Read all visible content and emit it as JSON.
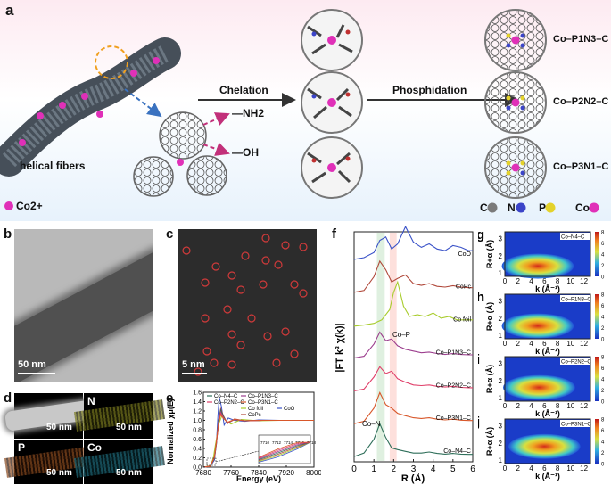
{
  "panels": {
    "a": "a",
    "b": "b",
    "c": "c",
    "d": "d",
    "e": "e",
    "f": "f",
    "g": "g",
    "h": "h",
    "i": "i",
    "j": "j"
  },
  "schematic": {
    "fiber_label": "helical fibers",
    "co_ion_label": "Co2+",
    "group_nh2": "—NH2",
    "group_oh": "—OH",
    "step1": "Chelation",
    "step2": "Phosphidation",
    "products": [
      "Co–P1N3–C",
      "Co–P2N2–C",
      "Co–P3N1–C"
    ],
    "legend": [
      {
        "label": "C",
        "color": "#7a7a7a"
      },
      {
        "label": "N",
        "color": "#3b44c8"
      },
      {
        "label": "P",
        "color": "#e4d22a"
      },
      {
        "label": "Co",
        "color": "#e030b8"
      }
    ],
    "colors": {
      "co": "#e030b8",
      "n": "#3b44c8",
      "p": "#e4d22a",
      "c": "#7a7a7a",
      "arrow_pink": "#c2307a",
      "arrow_blue": "#3a72c0"
    }
  },
  "tem": {
    "scale": "50 nm"
  },
  "haadf": {
    "scale": "5 nm"
  },
  "mapping": {
    "channels": [
      "",
      "N",
      "P",
      "Co"
    ],
    "scales": [
      "50 nm",
      "50 nm",
      "50 nm",
      "50 nm"
    ]
  },
  "chart_data": [
    {
      "panel": "e",
      "type": "line",
      "xlabel": "Energy (eV)",
      "ylabel": "Normalized χμ(E)",
      "xlim": [
        7680,
        8000
      ],
      "ylim": [
        0.0,
        1.6
      ],
      "xticks": [
        "7680",
        "7760",
        "7840",
        "7920",
        "8000"
      ],
      "yticks": [
        "0.0",
        "0.2",
        "0.4",
        "0.6",
        "0.8",
        "1.0",
        "1.2",
        "1.4",
        "1.6"
      ],
      "inset_xticks": [
        "7710",
        "7712",
        "7714",
        "7716",
        "7718"
      ],
      "legend": [
        {
          "name": "Co–N4–C",
          "color": "#2f6f5a"
        },
        {
          "name": "Co–P1N3–C",
          "color": "#9c3e8e"
        },
        {
          "name": "Co–P2N2–C",
          "color": "#e0406a"
        },
        {
          "name": "Co–P3N1–C",
          "color": "#d8572a"
        },
        {
          "name": "Co foil",
          "color": "#a8cc2c"
        },
        {
          "name": "CoO",
          "color": "#3a52c8"
        },
        {
          "name": "CoPc",
          "color": "#b0483a"
        }
      ],
      "series": [
        {
          "name": "CoO",
          "x": [
            7680,
            7700,
            7712,
            7718,
            7722,
            7726,
            7732,
            7740,
            7752,
            7770,
            7800,
            7840,
            7900,
            8000
          ],
          "y": [
            0.0,
            0.02,
            0.15,
            0.55,
            1.1,
            1.5,
            1.3,
            0.9,
            1.05,
            1.0,
            0.98,
            1.01,
            1.0,
            1.0
          ]
        },
        {
          "name": "Co foil",
          "x": [
            7680,
            7700,
            7709,
            7714,
            7720,
            7726,
            7734,
            7744,
            7760,
            7790,
            7840,
            7900,
            8000
          ],
          "y": [
            0.0,
            0.03,
            0.2,
            0.45,
            0.7,
            0.95,
            1.1,
            1.0,
            0.92,
            1.02,
            0.99,
            1.0,
            1.0
          ]
        },
        {
          "name": "CoPc",
          "x": [
            7680,
            7700,
            7712,
            7718,
            7724,
            7730,
            7738,
            7750,
            7770,
            7800,
            7850,
            7920,
            8000
          ],
          "y": [
            0.0,
            0.02,
            0.2,
            0.55,
            1.0,
            1.25,
            1.1,
            0.93,
            1.03,
            0.99,
            1.0,
            1.0,
            1.0
          ]
        },
        {
          "name": "Co–N4–C",
          "x": [
            7680,
            7700,
            7712,
            7718,
            7724,
            7730,
            7738,
            7750,
            7770,
            7800,
            7850,
            7920,
            8000
          ],
          "y": [
            0.0,
            0.02,
            0.18,
            0.5,
            0.98,
            1.22,
            1.08,
            0.94,
            1.02,
            0.99,
            1.0,
            1.0,
            1.0
          ]
        },
        {
          "name": "Co–P1N3–C",
          "x": [
            7680,
            7700,
            7712,
            7718,
            7724,
            7730,
            7738,
            7750,
            7770,
            7800,
            7850,
            7920,
            8000
          ],
          "y": [
            0.0,
            0.02,
            0.2,
            0.52,
            0.95,
            1.18,
            1.06,
            0.95,
            1.02,
            0.99,
            1.0,
            1.0,
            1.0
          ]
        },
        {
          "name": "Co–P2N2–C",
          "x": [
            7680,
            7700,
            7712,
            7718,
            7724,
            7730,
            7738,
            7750,
            7770,
            7800,
            7850,
            7920,
            8000
          ],
          "y": [
            0.0,
            0.02,
            0.21,
            0.54,
            0.93,
            1.15,
            1.05,
            0.95,
            1.02,
            0.99,
            1.0,
            1.0,
            1.0
          ]
        },
        {
          "name": "Co–P3N1–C",
          "x": [
            7680,
            7700,
            7712,
            7718,
            7724,
            7730,
            7738,
            7750,
            7770,
            7800,
            7850,
            7920,
            8000
          ],
          "y": [
            0.0,
            0.02,
            0.22,
            0.56,
            0.92,
            1.12,
            1.04,
            0.96,
            1.02,
            0.99,
            1.0,
            1.0,
            1.0
          ]
        }
      ]
    },
    {
      "panel": "f",
      "type": "line",
      "xlabel": "R (Å)",
      "ylabel": "|FT k³ χ(k)|",
      "xlim": [
        0,
        6
      ],
      "xticks": [
        "0",
        "1",
        "2",
        "3",
        "4",
        "5",
        "6"
      ],
      "annotations": [
        "Co–N",
        "Co–P"
      ],
      "series": [
        {
          "name": "CoO",
          "color": "#3a52c8",
          "x": [
            0,
            0.5,
            1.0,
            1.3,
            1.6,
            1.9,
            2.2,
            2.6,
            3.0,
            3.4,
            3.8,
            4.2,
            4.6,
            5.0,
            5.4,
            5.8,
            6.0
          ],
          "y": [
            0.05,
            0.1,
            0.25,
            0.6,
            0.7,
            0.35,
            0.5,
            1.0,
            0.55,
            0.4,
            0.5,
            0.35,
            0.3,
            0.45,
            0.4,
            0.3,
            0.3
          ]
        },
        {
          "name": "CoPc",
          "color": "#b0483a",
          "x": [
            0,
            0.5,
            1.0,
            1.3,
            1.6,
            1.9,
            2.2,
            2.6,
            3.0,
            3.4,
            3.8,
            4.2,
            4.6,
            5.0,
            5.4,
            5.8,
            6.0
          ],
          "y": [
            0.05,
            0.1,
            0.5,
            0.95,
            0.7,
            0.35,
            0.45,
            0.55,
            0.3,
            0.25,
            0.3,
            0.22,
            0.2,
            0.24,
            0.2,
            0.18,
            0.18
          ]
        },
        {
          "name": "Co foil",
          "color": "#a8cc2c",
          "x": [
            0,
            0.5,
            1.0,
            1.4,
            1.8,
            2.0,
            2.2,
            2.5,
            2.8,
            3.2,
            3.6,
            4.0,
            4.4,
            4.8,
            5.2,
            5.6,
            6.0
          ],
          "y": [
            0.02,
            0.05,
            0.1,
            0.2,
            0.5,
            1.0,
            1.3,
            0.6,
            0.3,
            0.35,
            0.3,
            0.4,
            0.25,
            0.3,
            0.2,
            0.2,
            0.2
          ]
        },
        {
          "name": "Co–P1N3–C",
          "color": "#9c3e8e",
          "x": [
            0,
            0.5,
            1.0,
            1.3,
            1.6,
            1.9,
            2.2,
            2.6,
            3.0,
            3.4,
            3.8,
            4.2,
            4.6,
            5.0,
            5.4,
            5.8,
            6.0
          ],
          "y": [
            0.05,
            0.1,
            0.45,
            0.8,
            0.55,
            0.6,
            0.4,
            0.3,
            0.25,
            0.2,
            0.22,
            0.18,
            0.15,
            0.18,
            0.15,
            0.14,
            0.14
          ]
        },
        {
          "name": "Co–P2N2–C",
          "color": "#e0406a",
          "x": [
            0,
            0.5,
            1.0,
            1.3,
            1.6,
            1.9,
            2.2,
            2.6,
            3.0,
            3.4,
            3.8,
            4.2,
            4.6,
            5.0,
            5.4,
            5.8,
            6.0
          ],
          "y": [
            0.05,
            0.1,
            0.45,
            0.75,
            0.55,
            0.62,
            0.4,
            0.3,
            0.22,
            0.2,
            0.22,
            0.18,
            0.16,
            0.18,
            0.15,
            0.14,
            0.14
          ]
        },
        {
          "name": "Co–P3N1–C",
          "color": "#d8572a",
          "x": [
            0,
            0.5,
            1.0,
            1.3,
            1.6,
            1.9,
            2.2,
            2.6,
            3.0,
            3.4,
            3.8,
            4.2,
            4.6,
            5.0,
            5.4,
            5.8,
            6.0
          ],
          "y": [
            0.05,
            0.12,
            0.5,
            0.95,
            0.6,
            0.5,
            0.35,
            0.28,
            0.22,
            0.2,
            0.22,
            0.18,
            0.16,
            0.18,
            0.15,
            0.14,
            0.14
          ]
        },
        {
          "name": "Co–N4–C",
          "color": "#2f6f5a",
          "x": [
            0,
            0.5,
            1.0,
            1.3,
            1.6,
            1.9,
            2.2,
            2.6,
            3.0,
            3.4,
            3.8,
            4.2,
            4.6,
            5.0,
            5.4,
            5.8,
            6.0
          ],
          "y": [
            0.05,
            0.15,
            0.55,
            1.0,
            0.6,
            0.3,
            0.25,
            0.2,
            0.15,
            0.15,
            0.18,
            0.14,
            0.12,
            0.14,
            0.12,
            0.11,
            0.11
          ]
        }
      ],
      "labels": [
        "CoO",
        "CoPc",
        "Co foil",
        "Co–P1N3–C",
        "Co–P2N2–C",
        "Co–P3N1–C",
        "Co–N4–C"
      ]
    },
    {
      "panel": "g-j",
      "type": "heatmap",
      "xlabel": "k (Å⁻¹)",
      "ylabel": "R+α (Å)",
      "xticks": [
        "0",
        "2",
        "4",
        "6",
        "8",
        "10",
        "12"
      ],
      "yticks": [
        "1",
        "2",
        "3"
      ],
      "colorbar_ticks": [
        "0",
        "2",
        "4",
        "6",
        "8"
      ],
      "maps": [
        {
          "panel": "g",
          "title": "Co–N4–C",
          "center_k": 5.0,
          "center_r": 1.4
        },
        {
          "panel": "h",
          "title": "Co–P1N3–C",
          "center_k": 5.0,
          "center_r": 1.55
        },
        {
          "panel": "i",
          "title": "Co–P2N2–C",
          "center_k": 5.2,
          "center_r": 1.6
        },
        {
          "panel": "j",
          "title": "Co–P3N1–C",
          "center_k": 6.0,
          "center_r": 1.8
        }
      ]
    }
  ]
}
